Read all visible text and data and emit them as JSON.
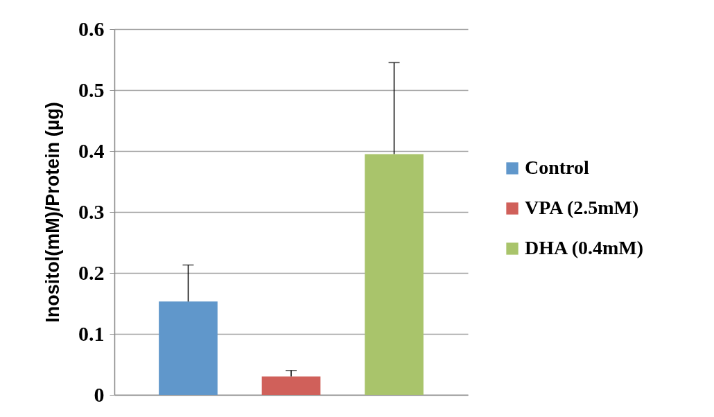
{
  "chart_data": {
    "type": "bar",
    "categories": [
      null
    ],
    "ylabel": "Inositol(mM)/Protein (µg)",
    "ylim": [
      0,
      0.6
    ],
    "yticks": [
      0,
      0.1,
      0.2,
      0.3,
      0.4,
      0.5,
      0.6
    ],
    "grid": "y",
    "legend": "right",
    "tick_labels": "y",
    "series": [
      {
        "name": "Control",
        "color": "#6097cb",
        "values": [
          0.153
        ],
        "errors": [
          [
            0.153,
            0.213
          ]
        ]
      },
      {
        "name": "VPA (2.5mM)",
        "color": "#d0605a",
        "values": [
          0.03
        ],
        "errors": [
          [
            0.03,
            0.04
          ]
        ]
      },
      {
        "name": "DHA (0.4mM)",
        "color": "#a9c46b",
        "values": [
          0.395
        ],
        "errors": [
          [
            0.395,
            0.545
          ]
        ]
      }
    ]
  }
}
